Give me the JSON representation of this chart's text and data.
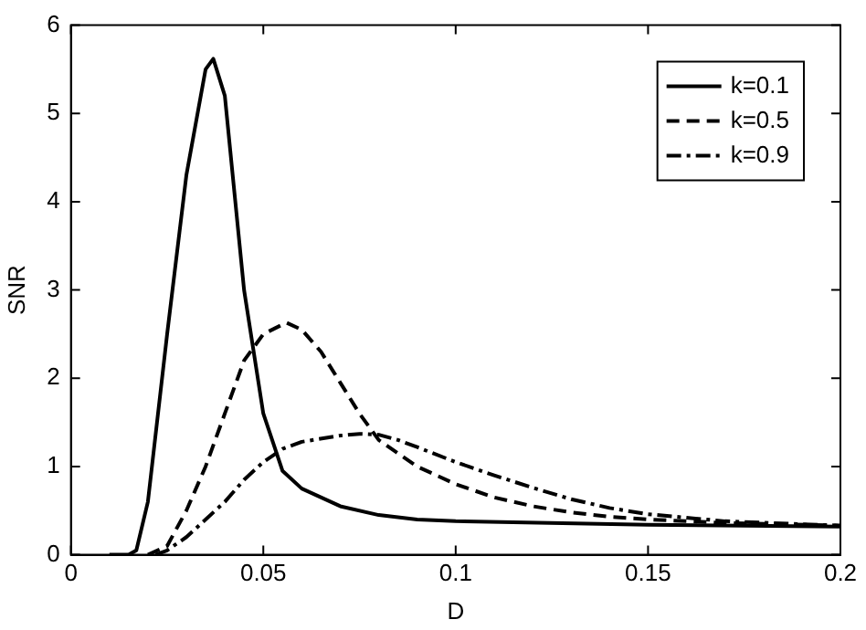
{
  "chart_data": {
    "type": "line",
    "xlabel": "D",
    "ylabel": "SNR",
    "xlim": [
      0,
      0.2
    ],
    "xticks": [
      0,
      0.05,
      0.1,
      0.15,
      0.2
    ],
    "ylim": [
      0,
      6
    ],
    "yticks": [
      0,
      1,
      2,
      3,
      4,
      5,
      6
    ],
    "grid": false,
    "legend": "top right",
    "marker": "none",
    "series": [
      {
        "name": "k=0.1",
        "color": "#000000",
        "line_style": "solid",
        "x": [
          0.01,
          0.015,
          0.017,
          0.02,
          0.025,
          0.03,
          0.035,
          0.037,
          0.04,
          0.045,
          0.05,
          0.055,
          0.06,
          0.07,
          0.08,
          0.09,
          0.1,
          0.15,
          0.2
        ],
        "values": [
          0,
          0,
          0.05,
          0.6,
          2.5,
          4.3,
          5.5,
          5.62,
          5.2,
          3.0,
          1.6,
          0.95,
          0.75,
          0.55,
          0.45,
          0.4,
          0.38,
          0.34,
          0.32
        ]
      },
      {
        "name": "k=0.5",
        "color": "#000000",
        "line_style": "dashed",
        "x": [
          0.02,
          0.025,
          0.03,
          0.035,
          0.04,
          0.045,
          0.05,
          0.056,
          0.06,
          0.065,
          0.07,
          0.075,
          0.08,
          0.09,
          0.1,
          0.11,
          0.12,
          0.13,
          0.14,
          0.15,
          0.17,
          0.2
        ],
        "values": [
          0,
          0.1,
          0.5,
          1.0,
          1.6,
          2.2,
          2.5,
          2.63,
          2.55,
          2.3,
          1.95,
          1.6,
          1.3,
          1.0,
          0.8,
          0.65,
          0.55,
          0.48,
          0.43,
          0.4,
          0.36,
          0.33
        ]
      },
      {
        "name": "k=0.9",
        "color": "#000000",
        "line_style": "dotted",
        "x": [
          0.022,
          0.025,
          0.03,
          0.035,
          0.04,
          0.045,
          0.05,
          0.055,
          0.06,
          0.07,
          0.075,
          0.08,
          0.085,
          0.09,
          0.1,
          0.11,
          0.12,
          0.13,
          0.14,
          0.15,
          0.17,
          0.2
        ],
        "values": [
          0,
          0.05,
          0.2,
          0.4,
          0.6,
          0.85,
          1.05,
          1.2,
          1.28,
          1.35,
          1.37,
          1.36,
          1.3,
          1.22,
          1.05,
          0.9,
          0.76,
          0.63,
          0.53,
          0.46,
          0.38,
          0.33
        ]
      }
    ]
  }
}
